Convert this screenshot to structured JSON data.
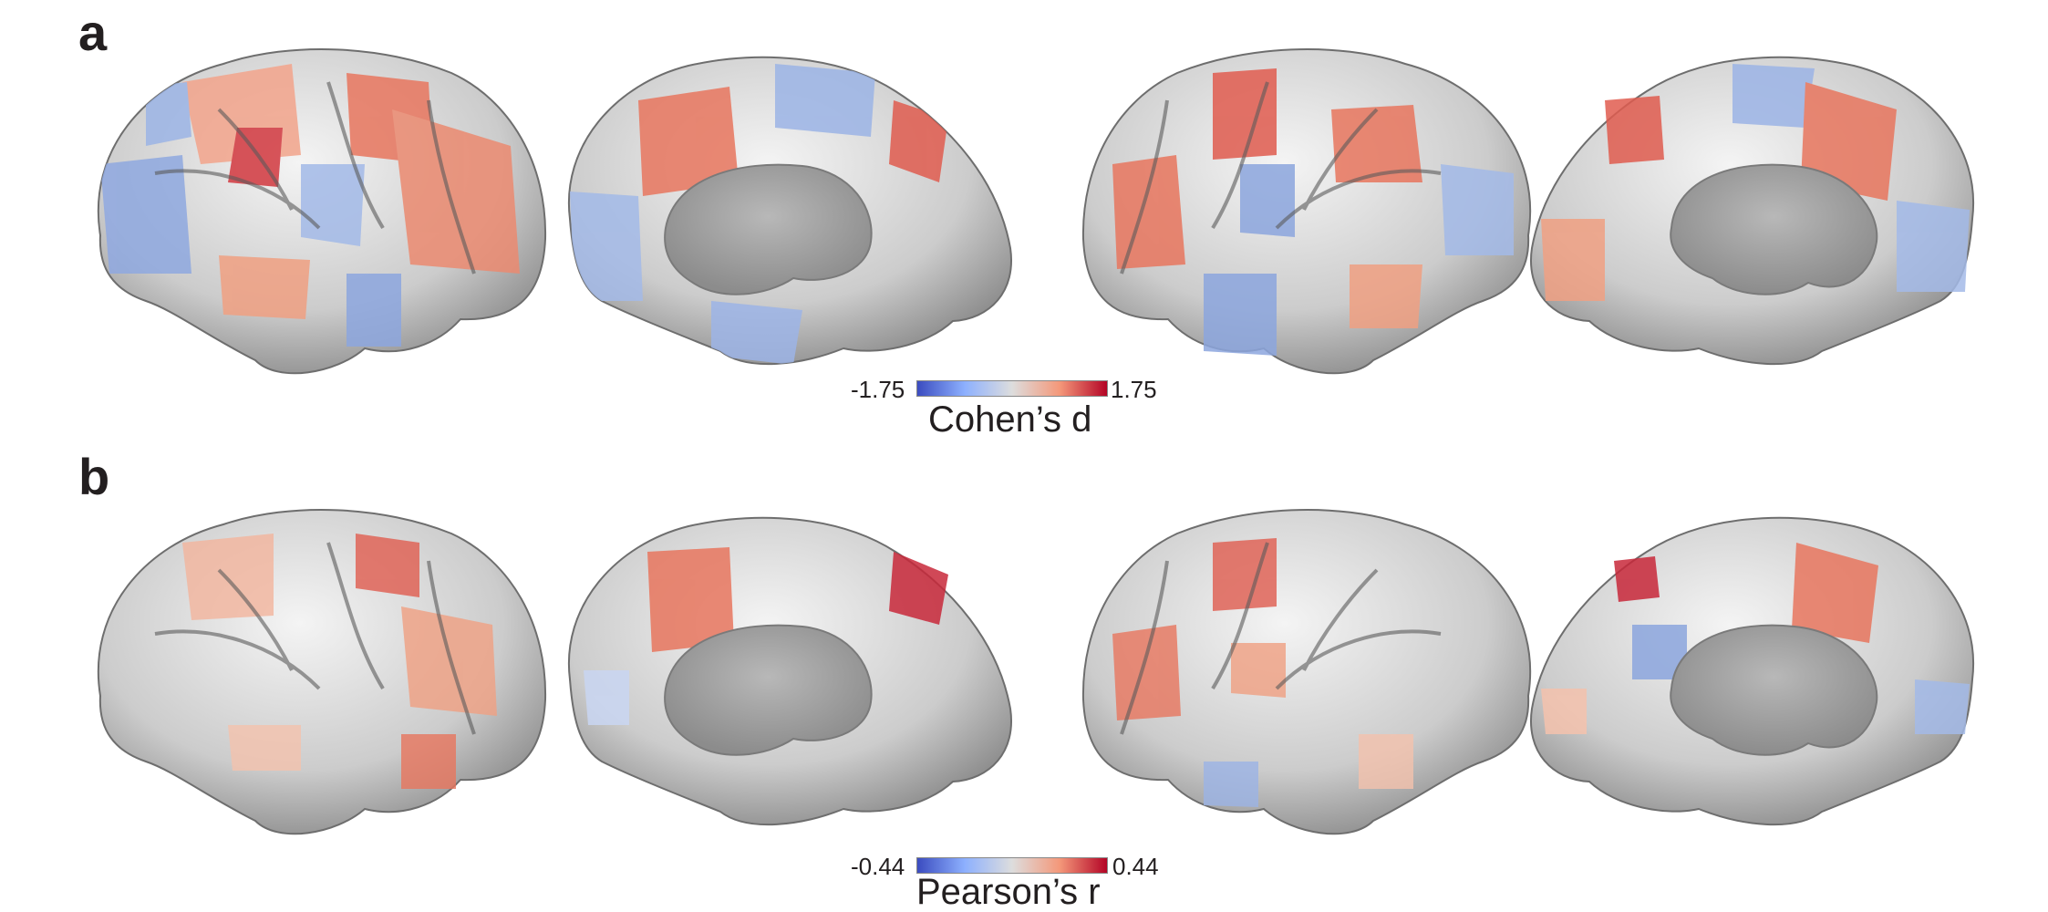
{
  "panels": [
    {
      "label": "a",
      "colorbar": {
        "min_label": "-1.75",
        "max_label": "1.75",
        "title": "Cohen’s d"
      }
    },
    {
      "label": "b",
      "colorbar": {
        "min_label": "-0.44",
        "max_label": "0.44",
        "title": "Pearson’s r"
      }
    }
  ],
  "colors": {
    "negative": "#3b4cc0",
    "neutral": "#dddddd",
    "positive": "#b40426",
    "cortex_base": "#cfcfcf",
    "medial_wall": "#a9a9a9",
    "text": "#231f20"
  }
}
